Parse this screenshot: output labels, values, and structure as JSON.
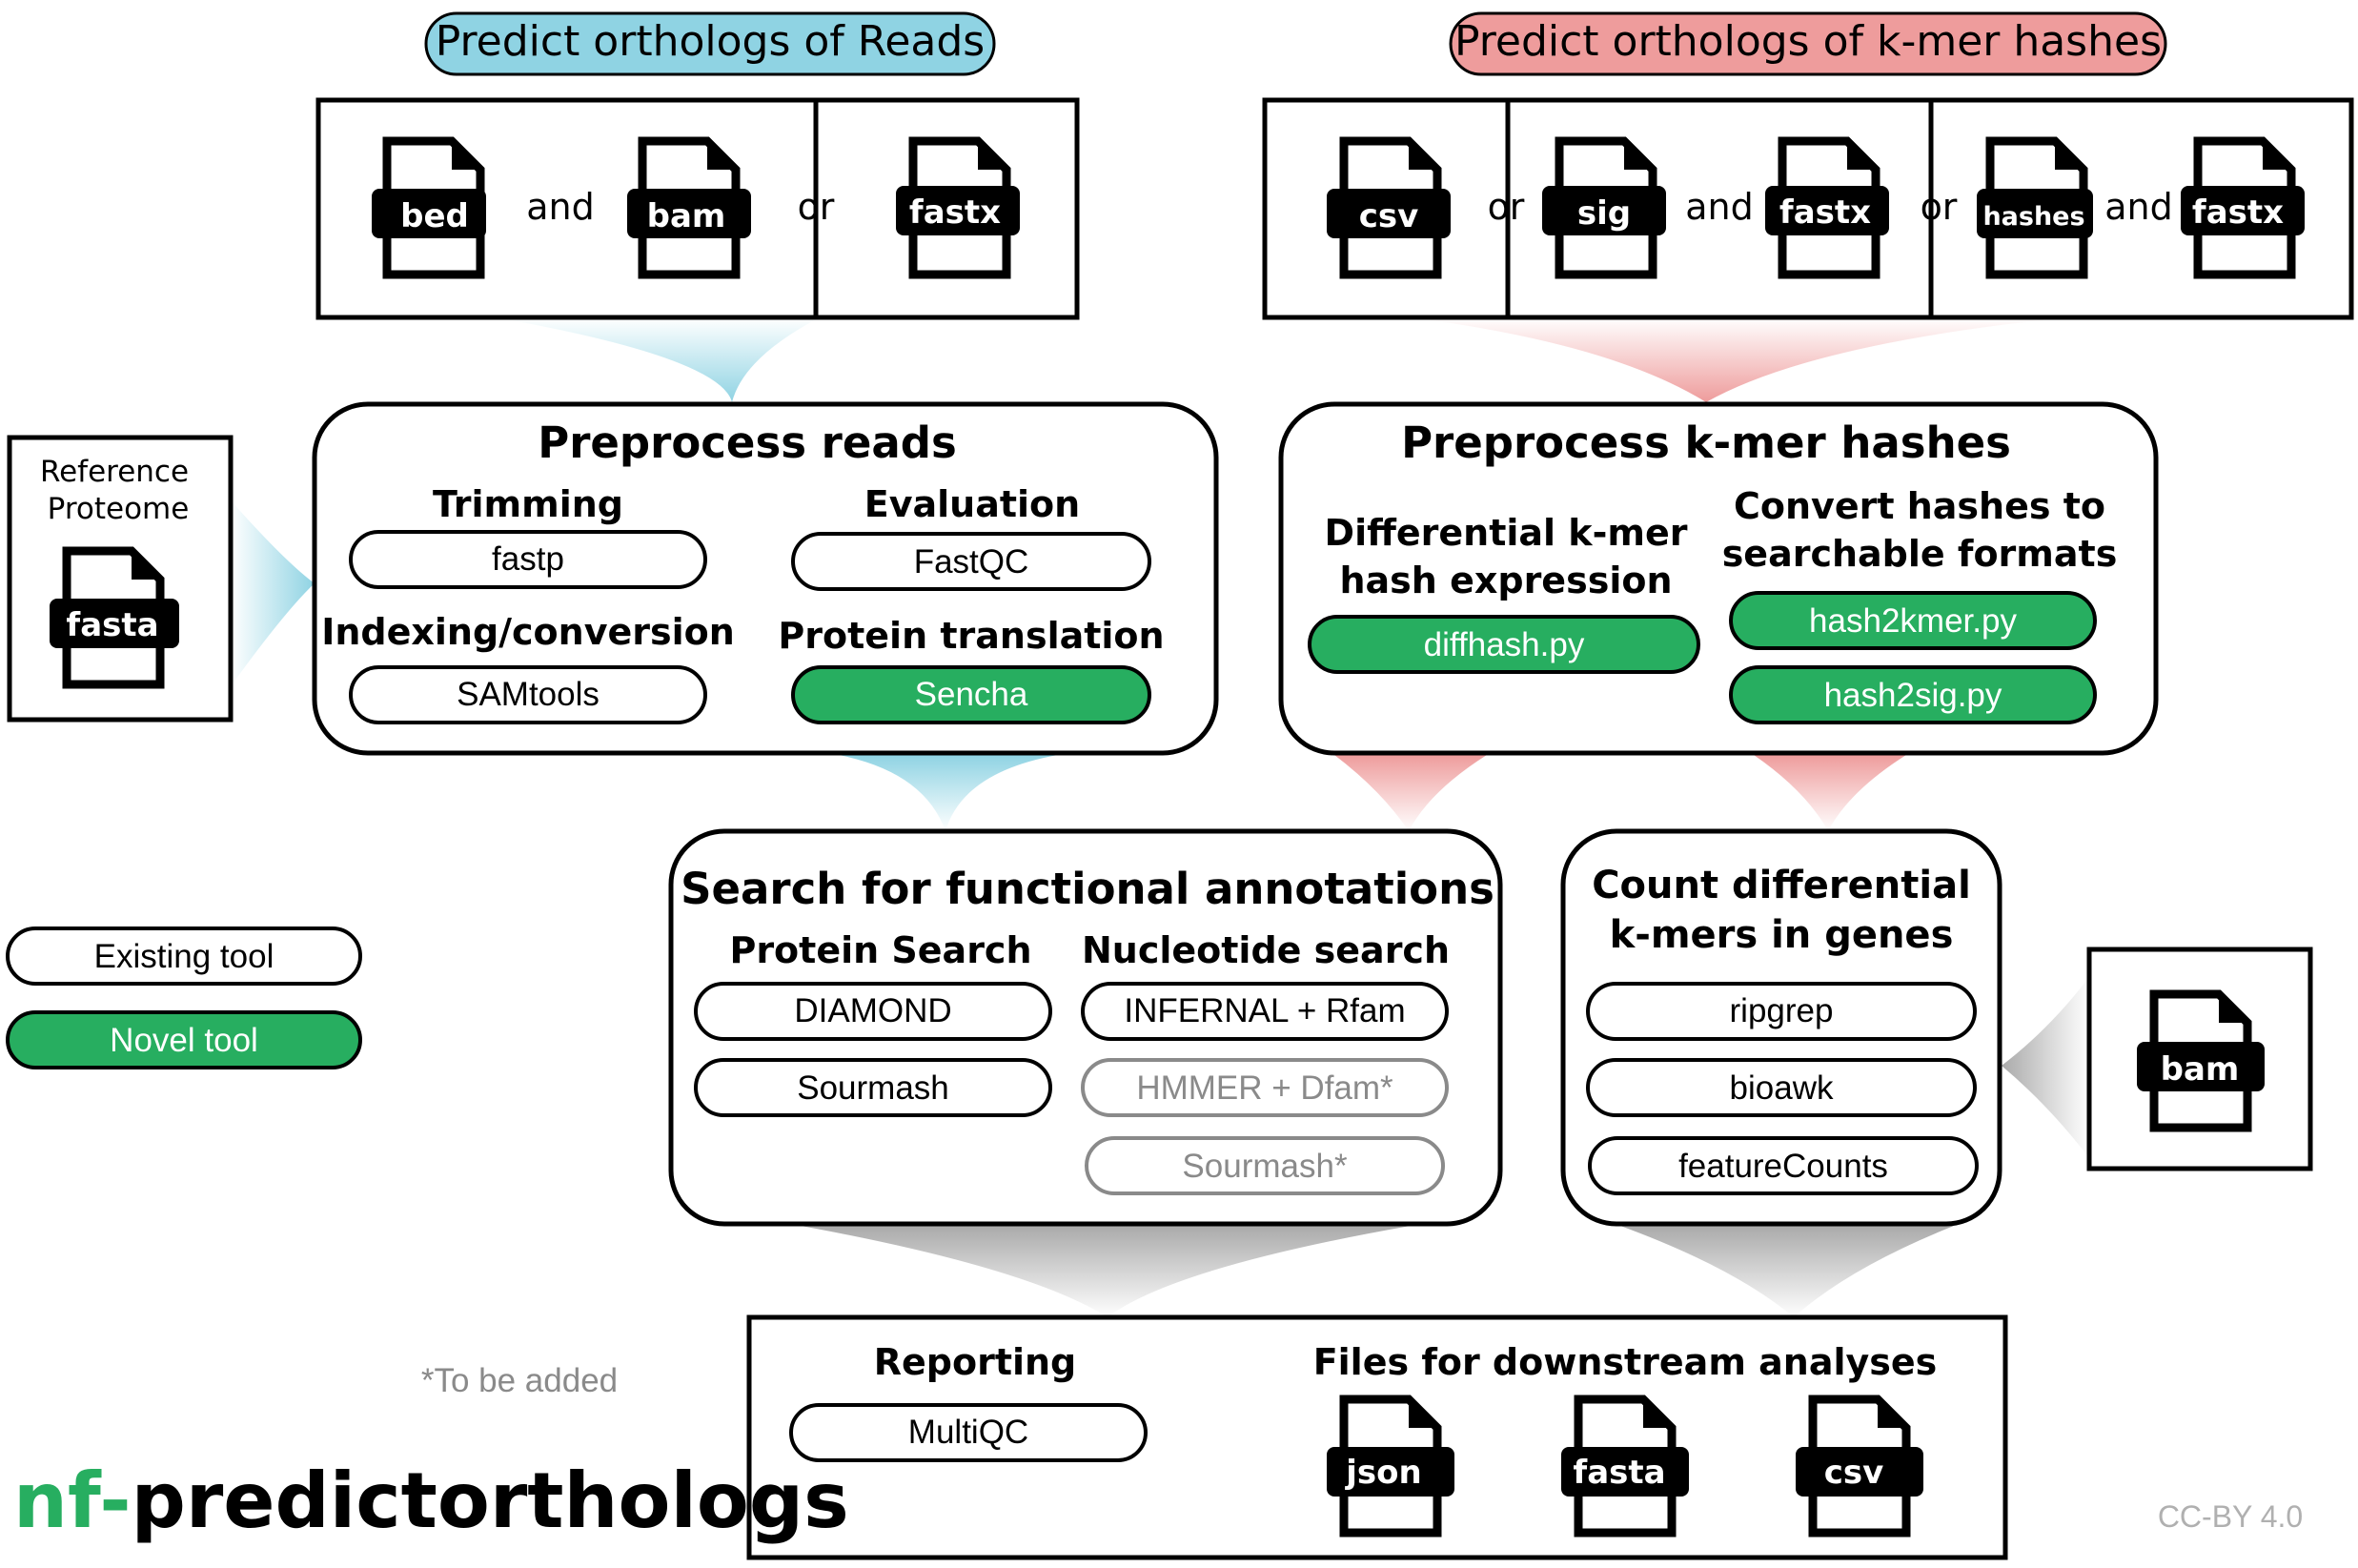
{
  "colors": {
    "reads_blue": "#8fd3e3",
    "hashes_pink": "#ee9c9c",
    "novel_green": "#27ae60",
    "gray_funnel": "#b8b8b8",
    "to_be_added_gray": "#8a8a8a",
    "logo_green": "#27ae60"
  },
  "headers": {
    "reads": "Predict orthologs of Reads",
    "hashes": "Predict orthologs of k-mer hashes"
  },
  "reads_inputs": {
    "file1": "bed",
    "conj1": "and",
    "file2": "bam",
    "conj2": "or",
    "file3": "fastx"
  },
  "hashes_inputs": {
    "file1": "csv",
    "conj1": "or",
    "file2": "sig",
    "conj2": "and",
    "file3": "fastx",
    "conj3": "or",
    "file4": "hashes",
    "conj4": "and",
    "file5": "fastx"
  },
  "reference": {
    "line1": "Reference",
    "line2": "Proteome",
    "file": "fasta"
  },
  "preprocess_reads": {
    "title": "Preprocess reads",
    "trimming_label": "Trimming",
    "trimming_tool": "fastp",
    "evaluation_label": "Evaluation",
    "evaluation_tool": "FastQC",
    "indexing_label": "Indexing/conversion",
    "indexing_tool": "SAMtools",
    "translation_label": "Protein translation",
    "translation_tool": "Sencha"
  },
  "preprocess_hashes": {
    "title": "Preprocess k-mer hashes",
    "diff_label_1": "Differential k-mer",
    "diff_label_2": "hash expression",
    "diff_tool": "diffhash.py",
    "convert_label_1": "Convert hashes to",
    "convert_label_2": "searchable formats",
    "convert_tool_1": "hash2kmer.py",
    "convert_tool_2": "hash2sig.py"
  },
  "legend": {
    "existing": "Existing tool",
    "novel": "Novel tool"
  },
  "search": {
    "title": "Search for functional annotations",
    "protein_label": "Protein Search",
    "protein_tool_1": "DIAMOND",
    "protein_tool_2": "Sourmash",
    "nucleotide_label": "Nucleotide search",
    "nucleotide_tool_1": "INFERNAL + Rfam",
    "nucleotide_tool_2": "HMMER + Dfam*",
    "nucleotide_tool_3": "Sourmash*"
  },
  "count": {
    "title_1": "Count differential",
    "title_2": "k-mers in genes",
    "tool_1": "ripgrep",
    "tool_2": "bioawk",
    "tool_3": "featureCounts"
  },
  "bam_input": {
    "file": "bam"
  },
  "output": {
    "reporting_label": "Reporting",
    "reporting_tool": "MultiQC",
    "files_label": "Files for downstream analyses",
    "file1": "json",
    "file2": "fasta",
    "file3": "csv"
  },
  "footnote": "*To be added",
  "logo": {
    "prefix": "nf-",
    "name": "predictorthologs"
  },
  "license": "CC-BY 4.0"
}
